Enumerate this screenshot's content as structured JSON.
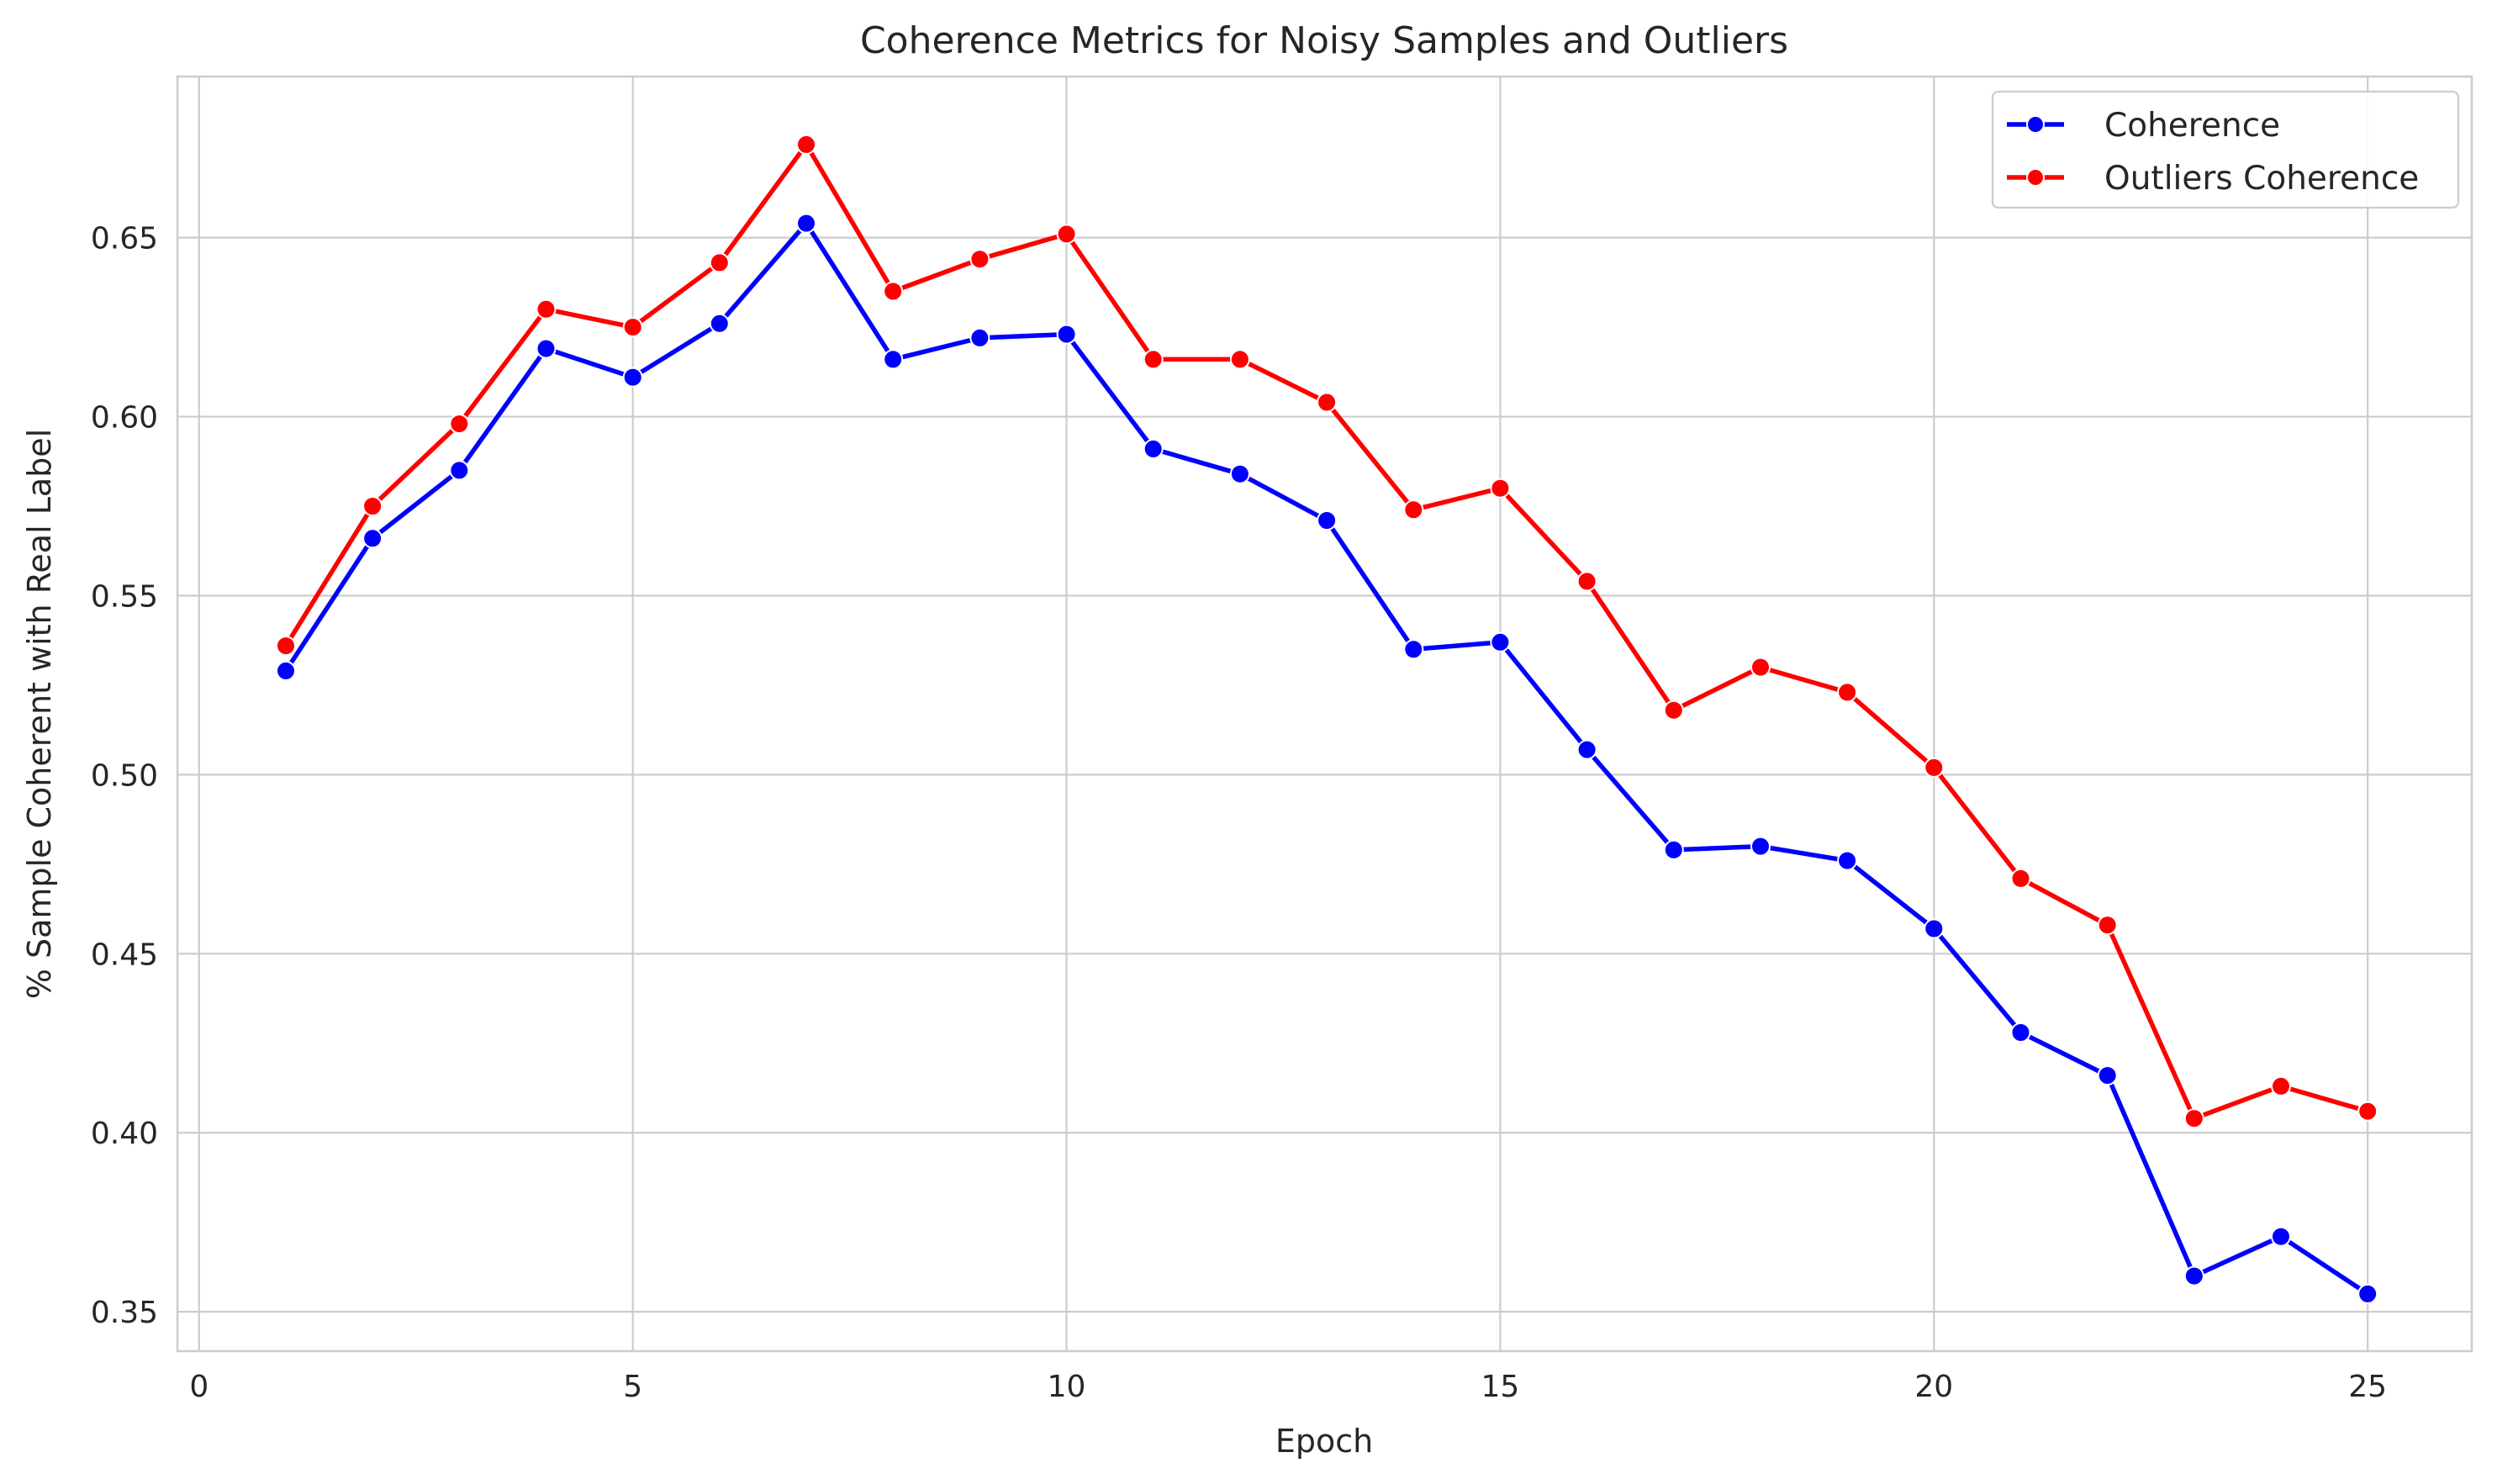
{
  "chart_data": {
    "type": "line",
    "title": "Coherence Metrics for Noisy Samples and Outliers",
    "xlabel": "Epoch",
    "ylabel": "% Sample Coherent with Real Label",
    "xlim": [
      -0.25,
      26.2
    ],
    "ylim": [
      0.339,
      0.695
    ],
    "xticks": [
      0,
      5,
      10,
      15,
      20,
      25
    ],
    "yticks": [
      0.35,
      0.4,
      0.45,
      0.5,
      0.55,
      0.6,
      0.65
    ],
    "xtick_labels": [
      "0",
      "5",
      "10",
      "15",
      "20",
      "25"
    ],
    "ytick_labels": [
      "0.35",
      "0.40",
      "0.45",
      "0.50",
      "0.55",
      "0.60",
      "0.65"
    ],
    "grid": true,
    "legend_position": "top-right",
    "x": [
      1,
      2,
      3,
      4,
      5,
      6,
      7,
      8,
      9,
      10,
      11,
      12,
      13,
      14,
      15,
      16,
      17,
      18,
      19,
      20,
      21,
      22,
      23,
      24,
      25
    ],
    "series": [
      {
        "name": "Coherence",
        "color": "#0000ff",
        "marker": "circle",
        "values": [
          0.529,
          0.566,
          0.585,
          0.619,
          0.611,
          0.626,
          0.654,
          0.616,
          0.622,
          0.623,
          0.591,
          0.584,
          0.571,
          0.535,
          0.537,
          0.507,
          0.479,
          0.48,
          0.476,
          0.457,
          0.428,
          0.416,
          0.36,
          0.371,
          0.355
        ]
      },
      {
        "name": "Outliers Coherence",
        "color": "#ff0000",
        "marker": "circle",
        "values": [
          0.536,
          0.575,
          0.598,
          0.63,
          0.625,
          0.643,
          0.676,
          0.635,
          0.644,
          0.651,
          0.616,
          0.616,
          0.604,
          0.574,
          0.58,
          0.554,
          0.518,
          0.53,
          0.523,
          0.502,
          0.471,
          0.458,
          0.404,
          0.413,
          0.406
        ]
      }
    ]
  }
}
